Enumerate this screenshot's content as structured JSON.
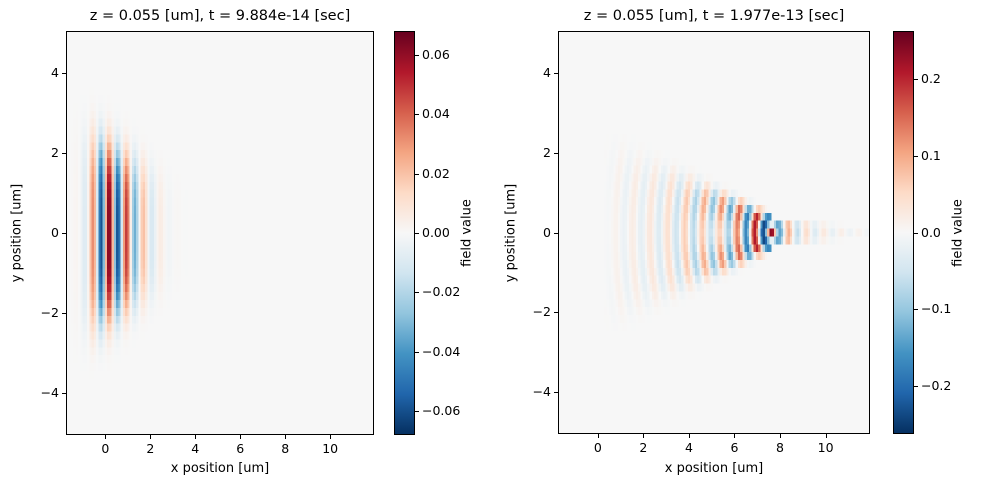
{
  "figure": {
    "background": "#ffffff"
  },
  "colormap": {
    "name": "RdBu_r",
    "stops": [
      "#053061",
      "#2166ac",
      "#4393c3",
      "#92c5de",
      "#d1e5f0",
      "#f7f7f7",
      "#fddbc7",
      "#f4a582",
      "#d6604d",
      "#b2182b",
      "#67001f"
    ]
  },
  "chart_data": [
    {
      "type": "heatmap",
      "panel": "left",
      "title": "z = 0.055 [um], t = 9.884e-14 [sec]",
      "xlabel": "x position [um]",
      "ylabel": "y position [um]",
      "colorbar_label": "field value",
      "xlim": [
        -1.75,
        11.95
      ],
      "ylim": [
        -5.05,
        5.05
      ],
      "grid_on": false,
      "xticks": [
        {
          "v": 0,
          "label": "0"
        },
        {
          "v": 2,
          "label": "2"
        },
        {
          "v": 4,
          "label": "4"
        },
        {
          "v": 6,
          "label": "6"
        },
        {
          "v": 8,
          "label": "8"
        },
        {
          "v": 10,
          "label": "10"
        }
      ],
      "yticks": [
        {
          "v": 4,
          "label": "4"
        },
        {
          "v": 2,
          "label": "2"
        },
        {
          "v": 0,
          "label": "0"
        },
        {
          "v": -2,
          "label": "−2"
        },
        {
          "v": -4,
          "label": "−4"
        }
      ],
      "vmin": -0.068,
      "vmax": 0.068,
      "colorbar_ticks": [
        {
          "v": 0.06,
          "label": "0.06"
        },
        {
          "v": 0.04,
          "label": "0.04"
        },
        {
          "v": 0.02,
          "label": "0.02"
        },
        {
          "v": 0.0,
          "label": "0.00"
        },
        {
          "v": -0.02,
          "label": "−0.02"
        },
        {
          "v": -0.04,
          "label": "−0.04"
        },
        {
          "v": -0.06,
          "label": "−0.06"
        }
      ],
      "grid": {
        "nx": 137,
        "ny": 51
      },
      "field_model": {
        "kind": "plane_wave_packet",
        "wavelength_um": 0.77,
        "phase_red_max_x_um": 0.15,
        "amp_center_x_um": 0.0,
        "amp_sigma_left_um": 0.7,
        "amp_sigma_right_um": 1.55,
        "peak_norm": 0.99,
        "halfwidth_y_um": 2.45,
        "halfwidth_ref_x_um": -0.8,
        "halfwidth_taper_per_um": 0.28,
        "y_edge_power": 4,
        "peak_field_value": 0.067
      }
    },
    {
      "type": "heatmap",
      "panel": "right",
      "title": "z = 0.055 [um], t = 1.977e-13 [sec]",
      "xlabel": "x position [um]",
      "ylabel": "y position [um]",
      "colorbar_label": "field value",
      "xlim": [
        -1.75,
        11.95
      ],
      "ylim": [
        -5.05,
        5.05
      ],
      "grid_on": false,
      "xticks": [
        {
          "v": 0,
          "label": "0"
        },
        {
          "v": 2,
          "label": "2"
        },
        {
          "v": 4,
          "label": "4"
        },
        {
          "v": 6,
          "label": "6"
        },
        {
          "v": 8,
          "label": "8"
        },
        {
          "v": 10,
          "label": "10"
        }
      ],
      "yticks": [
        {
          "v": 4,
          "label": "4"
        },
        {
          "v": 2,
          "label": "2"
        },
        {
          "v": 0,
          "label": "0"
        },
        {
          "v": -2,
          "label": "−2"
        },
        {
          "v": -4,
          "label": "−4"
        }
      ],
      "vmin": -0.262,
      "vmax": 0.262,
      "colorbar_ticks": [
        {
          "v": 0.2,
          "label": "0.2"
        },
        {
          "v": 0.1,
          "label": "0.1"
        },
        {
          "v": 0.0,
          "label": "0.0"
        },
        {
          "v": -0.1,
          "label": "−0.1"
        },
        {
          "v": -0.2,
          "label": "−0.2"
        }
      ],
      "grid": {
        "nx": 137,
        "ny": 51
      },
      "field_model": {
        "kind": "converging_wave",
        "wavelength_um": 0.77,
        "focus_x_um": 7.65,
        "amp_profile": [
          [
            0.2,
            0.0
          ],
          [
            1.0,
            0.06
          ],
          [
            2.0,
            0.1
          ],
          [
            3.0,
            0.16
          ],
          [
            4.0,
            0.3
          ],
          [
            5.0,
            0.5
          ],
          [
            5.5,
            0.62
          ],
          [
            6.0,
            0.72
          ],
          [
            6.5,
            0.8
          ],
          [
            7.0,
            0.88
          ],
          [
            7.65,
            1.0
          ],
          [
            8.0,
            0.55
          ],
          [
            8.5,
            0.32
          ],
          [
            9.0,
            0.2
          ],
          [
            9.8,
            0.12
          ],
          [
            10.6,
            0.07
          ],
          [
            11.95,
            0.03
          ]
        ],
        "halfwidth_y0_um": 2.35,
        "halfwidth_slope_per_um": 0.25,
        "halfwidth_min_um": 0.2,
        "tail_halfwidth_um": 0.3,
        "tail_halfwidth_slope": 0.04,
        "y_edge_power": 6,
        "node_center_x_um": 5.3,
        "node_sigma_x_um": 1.1,
        "node_sigma_y_um": 0.55,
        "node_depth": 0.6,
        "peak_field_value": 0.26
      }
    }
  ]
}
